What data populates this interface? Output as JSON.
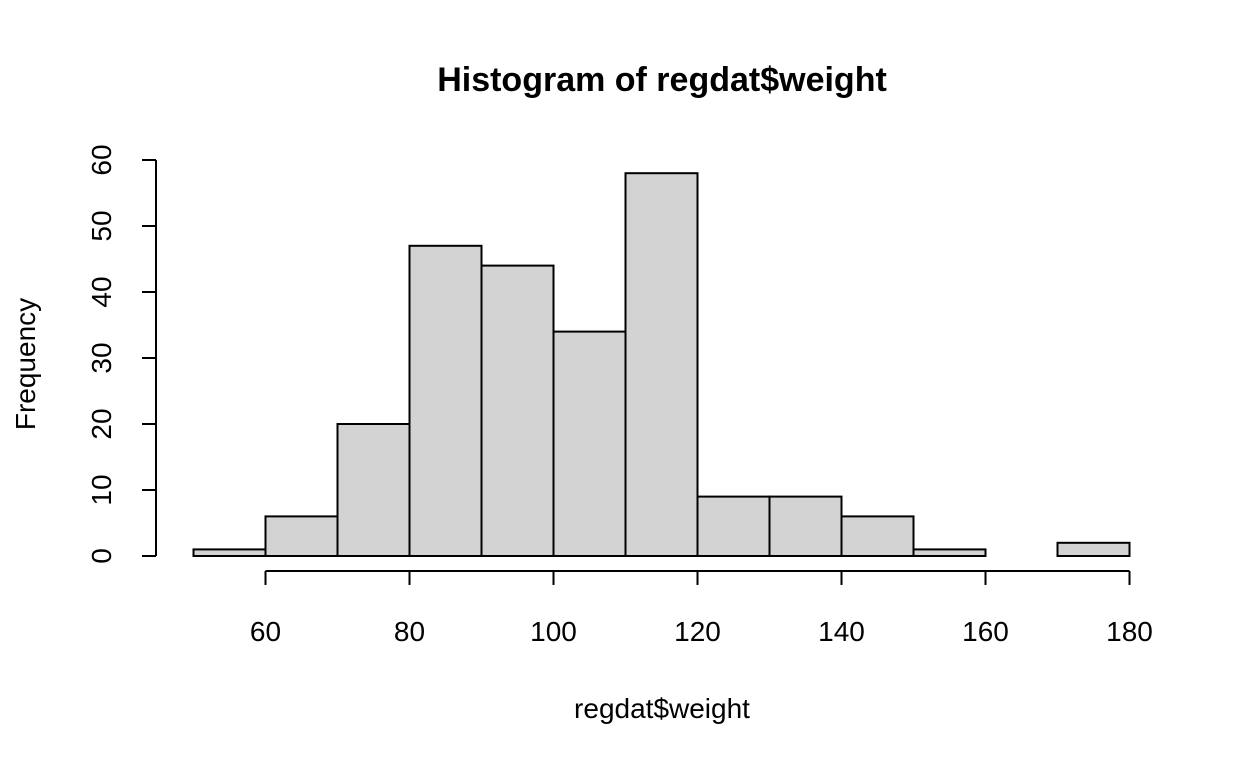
{
  "chart_data": {
    "type": "bar",
    "title": "Histogram of regdat$weight",
    "xlabel": "regdat$weight",
    "ylabel": "Frequency",
    "bins": [
      {
        "from": 50,
        "to": 60,
        "count": 1
      },
      {
        "from": 60,
        "to": 70,
        "count": 6
      },
      {
        "from": 70,
        "to": 80,
        "count": 20
      },
      {
        "from": 80,
        "to": 90,
        "count": 47
      },
      {
        "from": 90,
        "to": 100,
        "count": 44
      },
      {
        "from": 100,
        "to": 110,
        "count": 34
      },
      {
        "from": 110,
        "to": 120,
        "count": 58
      },
      {
        "from": 120,
        "to": 130,
        "count": 9
      },
      {
        "from": 130,
        "to": 140,
        "count": 9
      },
      {
        "from": 140,
        "to": 150,
        "count": 6
      },
      {
        "from": 150,
        "to": 160,
        "count": 1
      },
      {
        "from": 160,
        "to": 170,
        "count": 0
      },
      {
        "from": 170,
        "to": 180,
        "count": 2
      }
    ],
    "xlim": [
      50,
      180
    ],
    "ylim": [
      0,
      60
    ],
    "x_ticks": [
      "60",
      "80",
      "100",
      "120",
      "140",
      "160",
      "180"
    ],
    "y_ticks": [
      "0",
      "10",
      "20",
      "30",
      "40",
      "50",
      "60"
    ],
    "grid": false,
    "bar_color": "#d3d3d3",
    "border_color": "#000000"
  }
}
